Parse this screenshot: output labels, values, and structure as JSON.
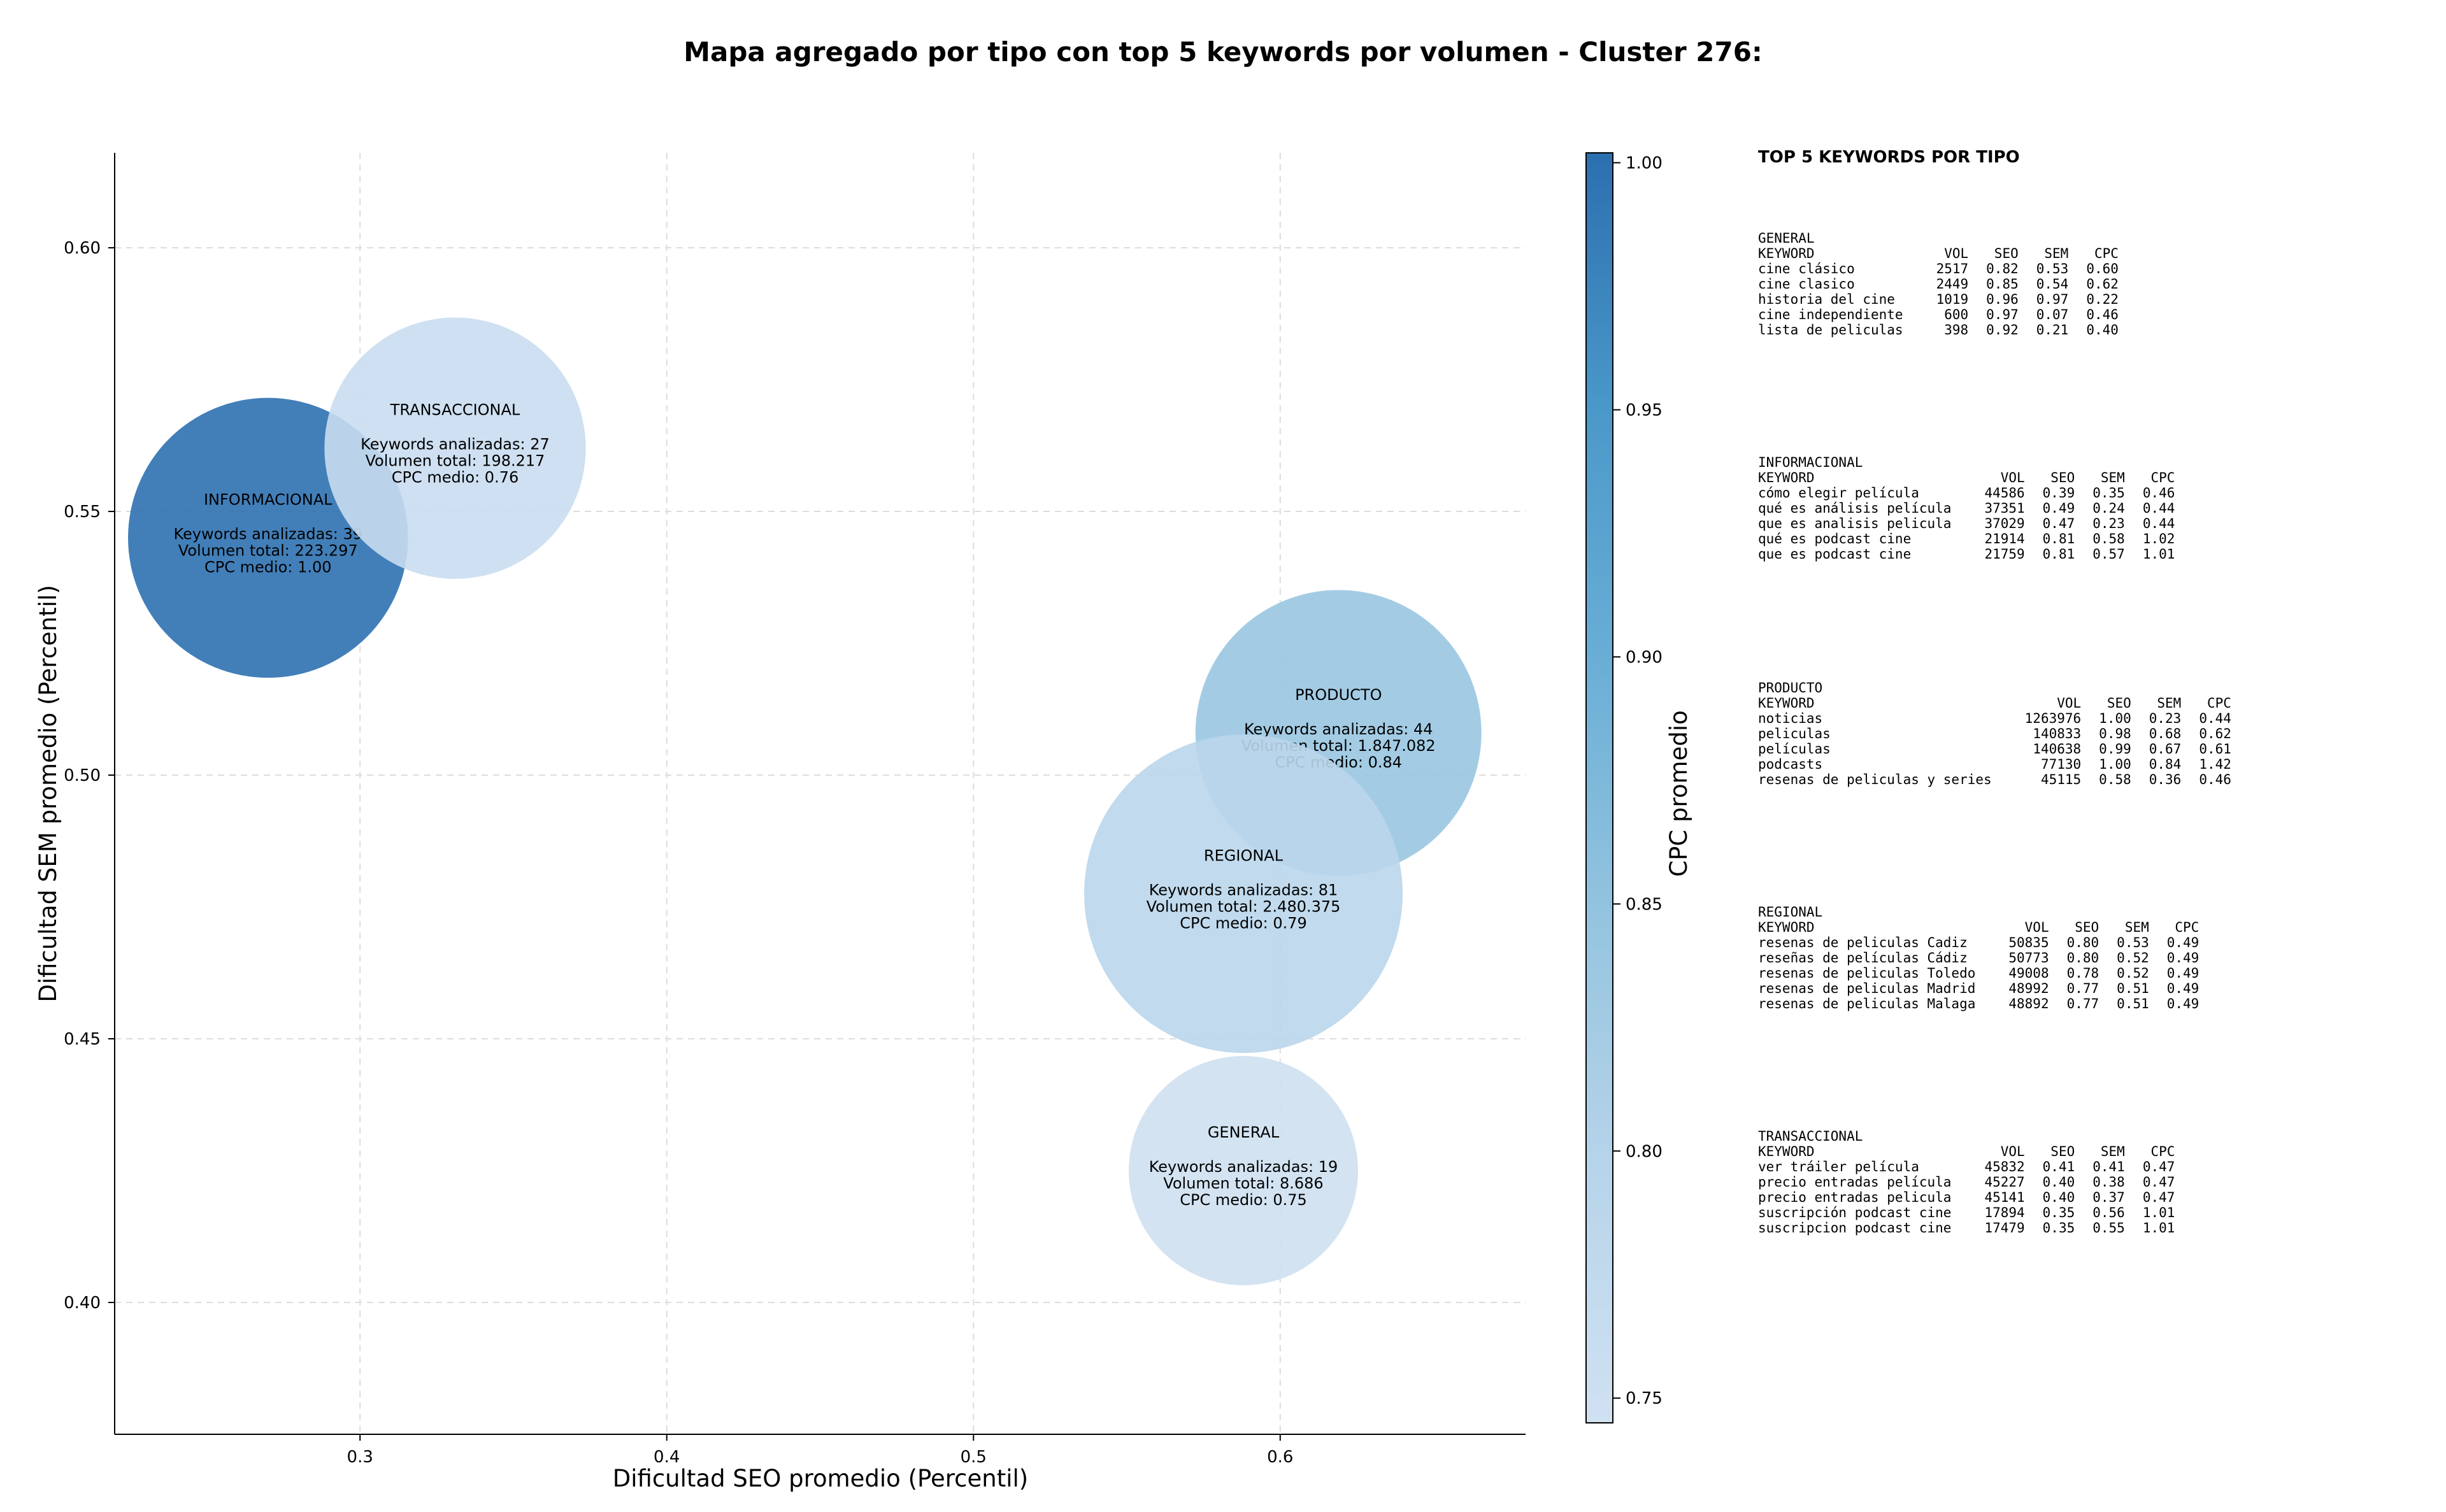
{
  "chart_data": {
    "type": "scatter",
    "title": "Mapa agregado por tipo con top 5 keywords por volumen - Cluster 276:",
    "xlabel": "Dificultad SEO promedio (Percentil)",
    "ylabel": "Dificultad SEM promedio (Percentil)",
    "xlim": [
      0.22,
      0.68
    ],
    "ylim": [
      0.375,
      0.618
    ],
    "xticks": [
      0.3,
      0.4,
      0.5,
      0.6
    ],
    "yticks": [
      0.4,
      0.45,
      0.5,
      0.55,
      0.6
    ],
    "xtick_labels": [
      "0.3",
      "0.4",
      "0.5",
      "0.6"
    ],
    "ytick_labels": [
      "0.40",
      "0.45",
      "0.50",
      "0.55",
      "0.60"
    ],
    "grid": true,
    "colorbar": {
      "label": "CPC promedio",
      "range": [
        0.745,
        1.002
      ],
      "ticks": [
        0.75,
        0.8,
        0.85,
        0.9,
        0.95,
        1.0
      ],
      "tick_labels": [
        "0.75",
        "0.80",
        "0.85",
        "0.90",
        "0.95",
        "1.00"
      ],
      "colormap": "Blues",
      "low_color": "#d0e1f2",
      "high_color": "#2c6fb0"
    },
    "points": [
      {
        "name": "INFORMACIONAL",
        "x": 0.27,
        "y": 0.545,
        "keywords": 39,
        "volume": 223297,
        "cpc": 1.0,
        "lines": [
          "Keywords analizadas: 39",
          "Volumen total: 223.297",
          "CPC medio: 1.00"
        ]
      },
      {
        "name": "TRANSACCIONAL",
        "x": 0.331,
        "y": 0.562,
        "keywords": 27,
        "volume": 198217,
        "cpc": 0.76,
        "lines": [
          "Keywords analizadas: 27",
          "Volumen total: 198.217",
          "CPC medio: 0.76"
        ]
      },
      {
        "name": "PRODUCTO",
        "x": 0.619,
        "y": 0.508,
        "keywords": 44,
        "volume": 1847082,
        "cpc": 0.84,
        "lines": [
          "Keywords analizadas: 44",
          "Volumen total: 1.847.082",
          "CPC medio: 0.84"
        ]
      },
      {
        "name": "REGIONAL",
        "x": 0.588,
        "y": 0.4775,
        "keywords": 81,
        "volume": 2480375,
        "cpc": 0.79,
        "lines": [
          "Keywords analizadas: 81",
          "Volumen total: 2.480.375",
          "CPC medio: 0.79"
        ]
      },
      {
        "name": "GENERAL",
        "x": 0.588,
        "y": 0.425,
        "keywords": 19,
        "volume": 8686,
        "cpc": 0.75,
        "lines": [
          "Keywords analizadas: 19",
          "Volumen total: 8.686",
          "CPC medio: 0.75"
        ]
      }
    ]
  },
  "keywords_panel": {
    "title": "TOP 5 KEYWORDS POR TIPO",
    "columns": [
      "KEYWORD",
      "VOL",
      "SEO",
      "SEM",
      "CPC"
    ],
    "sections": [
      {
        "type": "GENERAL",
        "rows": [
          [
            "cine clásico",
            "2517",
            "0.82",
            "0.53",
            "0.60"
          ],
          [
            "cine clasico",
            "2449",
            "0.85",
            "0.54",
            "0.62"
          ],
          [
            "historia del cine",
            "1019",
            "0.96",
            "0.97",
            "0.22"
          ],
          [
            "cine independiente",
            "600",
            "0.97",
            "0.07",
            "0.46"
          ],
          [
            "lista de peliculas",
            "398",
            "0.92",
            "0.21",
            "0.40"
          ]
        ]
      },
      {
        "type": "INFORMACIONAL",
        "rows": [
          [
            "cómo elegir película",
            "44586",
            "0.39",
            "0.35",
            "0.46"
          ],
          [
            "qué es análisis película",
            "37351",
            "0.49",
            "0.24",
            "0.44"
          ],
          [
            "que es analisis pelicula",
            "37029",
            "0.47",
            "0.23",
            "0.44"
          ],
          [
            "qué es podcast cine",
            "21914",
            "0.81",
            "0.58",
            "1.02"
          ],
          [
            "que es podcast cine",
            "21759",
            "0.81",
            "0.57",
            "1.01"
          ]
        ]
      },
      {
        "type": "PRODUCTO",
        "rows": [
          [
            "noticias",
            "1263976",
            "1.00",
            "0.23",
            "0.44"
          ],
          [
            "peliculas",
            "140833",
            "0.98",
            "0.68",
            "0.62"
          ],
          [
            "películas",
            "140638",
            "0.99",
            "0.67",
            "0.61"
          ],
          [
            "podcasts",
            "77130",
            "1.00",
            "0.84",
            "1.42"
          ],
          [
            "resenas de peliculas y series",
            "45115",
            "0.58",
            "0.36",
            "0.46"
          ]
        ]
      },
      {
        "type": "REGIONAL",
        "rows": [
          [
            "resenas de peliculas Cadiz",
            "50835",
            "0.80",
            "0.53",
            "0.49"
          ],
          [
            "reseñas de películas Cádiz",
            "50773",
            "0.80",
            "0.52",
            "0.49"
          ],
          [
            "resenas de peliculas Toledo",
            "49008",
            "0.78",
            "0.52",
            "0.49"
          ],
          [
            "resenas de peliculas Madrid",
            "48992",
            "0.77",
            "0.51",
            "0.49"
          ],
          [
            "resenas de peliculas Malaga",
            "48892",
            "0.77",
            "0.51",
            "0.49"
          ]
        ]
      },
      {
        "type": "TRANSACCIONAL",
        "rows": [
          [
            "ver tráiler película",
            "45832",
            "0.41",
            "0.41",
            "0.47"
          ],
          [
            "precio entradas película",
            "45227",
            "0.40",
            "0.38",
            "0.47"
          ],
          [
            "precio entradas pelicula",
            "45141",
            "0.40",
            "0.37",
            "0.47"
          ],
          [
            "suscripción podcast cine",
            "17894",
            "0.35",
            "0.56",
            "1.01"
          ],
          [
            "suscripcion podcast cine",
            "17479",
            "0.35",
            "0.55",
            "1.01"
          ]
        ]
      }
    ]
  }
}
